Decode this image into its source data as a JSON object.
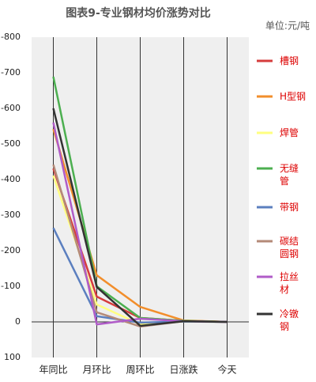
{
  "chart_data": {
    "type": "line",
    "title": "图表9-专业钢材均价涨势对比",
    "unit_label": "单位:元/吨",
    "categories": [
      "年同比",
      "月环比",
      "周环比",
      "日涨跌",
      "今天"
    ],
    "ylim": [
      -800,
      100
    ],
    "y_inverted": true,
    "yticks": [
      -800,
      -700,
      -600,
      -500,
      -400,
      -300,
      -200,
      -100,
      0,
      100
    ],
    "series": [
      {
        "name": "槽钢",
        "color": "#d63c3c",
        "values": [
          -431,
          -71,
          -11,
          -3,
          0
        ]
      },
      {
        "name": "H型钢",
        "color": "#f28e2b",
        "values": [
          -542,
          -131,
          -42,
          -4,
          0
        ]
      },
      {
        "name": "焊管",
        "color": "#ffff80",
        "values": [
          -411,
          -49,
          7,
          -1,
          0
        ]
      },
      {
        "name": "无缝管",
        "color": "#4caf50",
        "values": [
          -689,
          -100,
          -11,
          -3,
          0
        ]
      },
      {
        "name": "带钢",
        "color": "#5b7fbf",
        "values": [
          -264,
          -16,
          2,
          -1,
          0
        ]
      },
      {
        "name": "碳结圆钢",
        "color": "#b48a78",
        "values": [
          -442,
          -27,
          13,
          -2,
          0
        ]
      },
      {
        "name": "拉丝材",
        "color": "#b05cc8",
        "values": [
          -560,
          7,
          -9,
          -2,
          0
        ]
      },
      {
        "name": "冷镦钢",
        "color": "#333333",
        "values": [
          -600,
          -98,
          11,
          -2,
          0
        ]
      }
    ]
  }
}
